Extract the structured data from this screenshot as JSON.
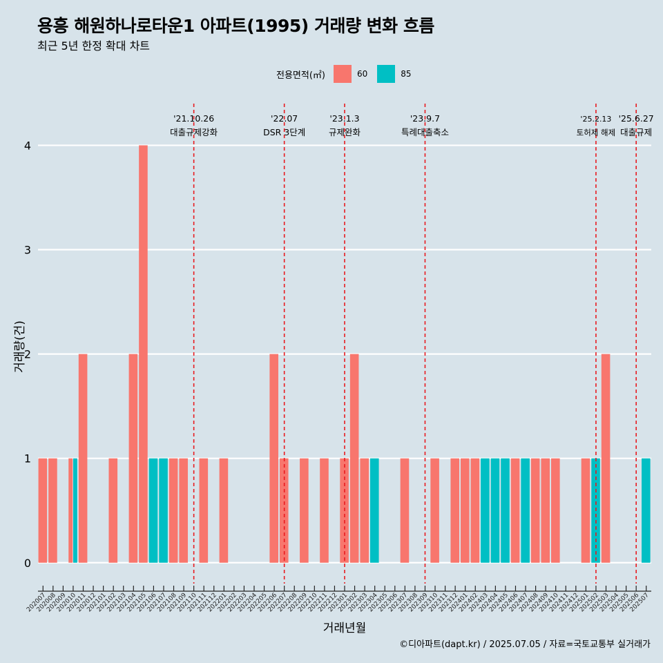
{
  "title": "용흥 해원하나로타운1 아파트(1995) 거래량 변화 흐름",
  "subtitle": "최근 5년 한정 확대 차트",
  "caption": "©디아파트(dapt.kr) / 2025.07.05 / 자료=국토교통부 실거래가",
  "legend": {
    "title": "전용면적(㎡)",
    "items": [
      {
        "label": "60",
        "color": "#f8766d"
      },
      {
        "label": "85",
        "color": "#00bfc4"
      }
    ]
  },
  "chart_data": {
    "type": "bar",
    "xlabel": "거래년월",
    "ylabel": "거래량(건)",
    "ylim": [
      -0.2,
      4.4
    ],
    "yticks": [
      0,
      1,
      2,
      3,
      4
    ],
    "grid": true,
    "legend_position": "top",
    "categories": [
      "202007",
      "202008",
      "202009",
      "202010",
      "202011",
      "202012",
      "202101",
      "202102",
      "202103",
      "202104",
      "202105",
      "202106",
      "202107",
      "202108",
      "202109",
      "202110",
      "202111",
      "202112",
      "202201",
      "202202",
      "202203",
      "202204",
      "202205",
      "202206",
      "202207",
      "202208",
      "202209",
      "202210",
      "202211",
      "202212",
      "202301",
      "202302",
      "202303",
      "202304",
      "202305",
      "202306",
      "202307",
      "202308",
      "202309",
      "202310",
      "202311",
      "202312",
      "202401",
      "202402",
      "202403",
      "202404",
      "202405",
      "202406",
      "202407",
      "202408",
      "202409",
      "202410",
      "202411",
      "202412",
      "202501",
      "202502",
      "202503",
      "202504",
      "202505",
      "202506",
      "202507"
    ],
    "series": [
      {
        "name": "60",
        "color": "#f8766d",
        "values": [
          1,
          1,
          0,
          1,
          2,
          0,
          0,
          1,
          0,
          2,
          4,
          0,
          0,
          1,
          1,
          0,
          1,
          0,
          1,
          0,
          0,
          0,
          0,
          2,
          1,
          0,
          1,
          0,
          1,
          0,
          1,
          2,
          1,
          0,
          0,
          0,
          1,
          0,
          0,
          1,
          0,
          1,
          1,
          1,
          0,
          0,
          0,
          1,
          0,
          1,
          1,
          1,
          0,
          0,
          1,
          0,
          2,
          0,
          0,
          0,
          0
        ]
      },
      {
        "name": "85",
        "color": "#00bfc4",
        "values": [
          0,
          0,
          0,
          1,
          0,
          0,
          0,
          0,
          0,
          0,
          0,
          1,
          1,
          0,
          0,
          0,
          0,
          0,
          0,
          0,
          0,
          0,
          0,
          0,
          0,
          0,
          0,
          0,
          0,
          0,
          0,
          0,
          0,
          1,
          0,
          0,
          0,
          0,
          0,
          0,
          0,
          0,
          0,
          0,
          1,
          1,
          1,
          0,
          1,
          0,
          0,
          0,
          0,
          0,
          0,
          1,
          0,
          0,
          0,
          0,
          1
        ]
      }
    ],
    "events": [
      {
        "x": "202110",
        "date": "'21.10.26",
        "label": "대출규제강화"
      },
      {
        "x": "202207",
        "date": "'22.07",
        "label": "DSR 3단계"
      },
      {
        "x": "202301",
        "date": "'23.1.3",
        "label": "규제완화"
      },
      {
        "x": "202309",
        "date": "'23.9.7",
        "label": "특례대출축소"
      },
      {
        "x": "202502",
        "date": "'25.2.13",
        "label": "토허제 해제"
      },
      {
        "x": "202506",
        "date": "'25.6.27",
        "label": "대출규제"
      }
    ]
  }
}
